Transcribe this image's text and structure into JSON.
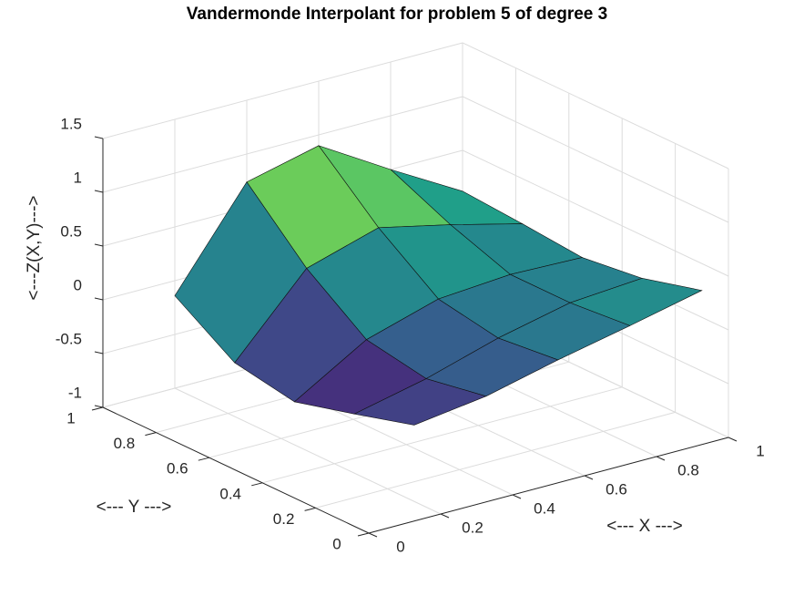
{
  "chart_data": {
    "type": "surface",
    "title": "Vandermonde Interpolant for problem 5 of degree 3",
    "xlabel": "<--- X --->",
    "ylabel": "<--- Y --->",
    "zlabel": "<---Z(X,Y)--->",
    "x": [
      0.2,
      0.4,
      0.6,
      0.8,
      1.0
    ],
    "y": [
      0.1,
      0.325,
      0.55,
      0.775,
      1.0
    ],
    "z": [
      [
        -0.29,
        -0.2,
        -0.04,
        0.1,
        0.25
      ],
      [
        -0.45,
        -0.3,
        -0.1,
        0.05,
        0.1
      ],
      [
        -0.6,
        -0.2,
        0.0,
        0.05,
        0.03
      ],
      [
        -0.5,
        0.2,
        0.4,
        0.25,
        0.08
      ],
      [
        -0.14,
        0.74,
        0.9,
        0.5,
        0.12
      ]
    ],
    "xlim": [
      0,
      1
    ],
    "ylim": [
      0,
      1
    ],
    "zlim": [
      -1,
      1.5
    ],
    "xticks": [
      0,
      0.2,
      0.4,
      0.6,
      0.8,
      1
    ],
    "yticks": [
      0,
      0.2,
      0.4,
      0.6,
      0.8,
      1
    ],
    "zticks": [
      -1,
      -0.5,
      0,
      0.5,
      1,
      1.5
    ],
    "colormap": "viridis",
    "grid": true
  }
}
